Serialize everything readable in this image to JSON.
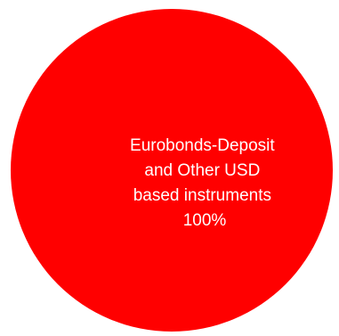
{
  "chart_data": {
    "type": "pie",
    "title": "",
    "slices": [
      {
        "label": "Eurobonds-Deposit and Other USD based instruments",
        "label_lines": [
          "Eurobonds-Deposit",
          "and Other USD",
          "based instruments"
        ],
        "value": 100,
        "value_label": "100%",
        "color": "#ff0000"
      }
    ],
    "legend": "none"
  }
}
